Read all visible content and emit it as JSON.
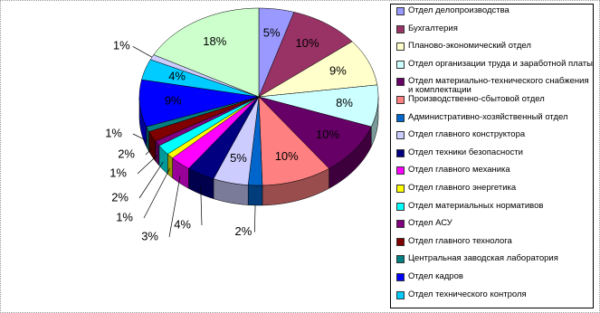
{
  "chart_data": {
    "type": "pie",
    "categories": [
      "Отдел делопроизводства",
      "Бухгалтерия",
      "Планово-экономический отдел",
      "Отдел организации труда и заработной платы",
      "Отдел материально-технического снабжения и комплектации",
      "Производственно-сбытовой отдел",
      "Административно-хозяйственный отдел",
      "Отдел главного конструктора",
      "Отдел техники безопасности",
      "Отдел главного механика",
      "Отдел главного энергетика",
      "Отдел материальных нормативов",
      "Отдел АСУ",
      "Отдел главного технолога",
      "Центральная заводская лаборатория",
      "Отдел кадров",
      "Отдел технического контроля",
      null,
      null
    ],
    "values": [
      5,
      10,
      9,
      8,
      10,
      10,
      2,
      5,
      4,
      3,
      1,
      2,
      1,
      2,
      1,
      9,
      4,
      1,
      18
    ],
    "value_labels": [
      "5%",
      "10%",
      "9%",
      "8%",
      "10%",
      "10%",
      "2%",
      "5%",
      "4%",
      "3%",
      "1%",
      "2%",
      "1%",
      "2%",
      "1%",
      "9%",
      "4%",
      "1%",
      "18%"
    ],
    "colors": [
      "#9999ff",
      "#993366",
      "#ffffcc",
      "#ccffff",
      "#660066",
      "#ff8080",
      "#0066cc",
      "#ccccff",
      "#000080",
      "#ff00ff",
      "#ffff00",
      "#00ffff",
      "#800080",
      "#800000",
      "#008080",
      "#0000ff",
      "#00ccff",
      "#ccccff",
      "#ccffcc"
    ]
  }
}
